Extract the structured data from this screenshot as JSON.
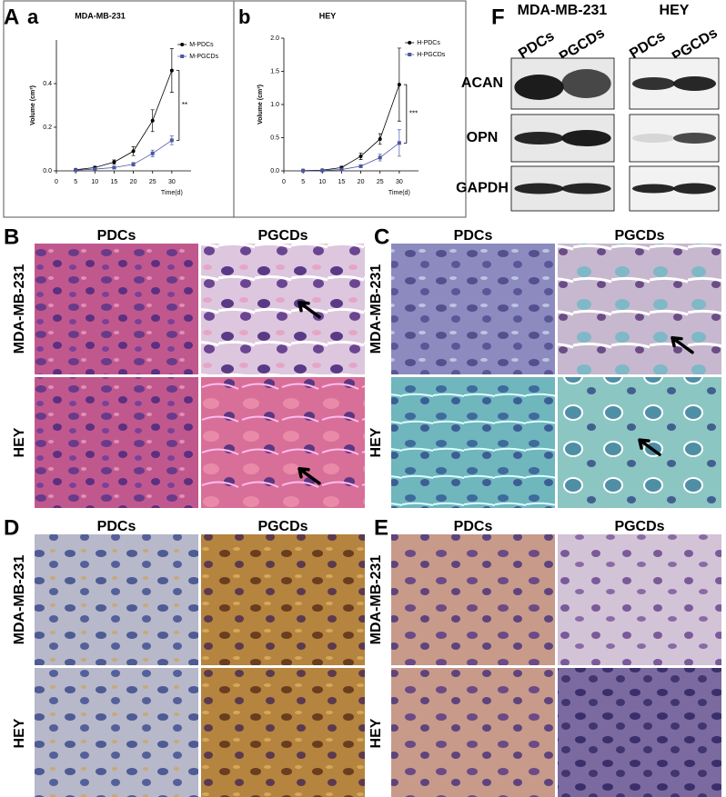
{
  "panel_labels": [
    "A",
    "a",
    "b",
    "F",
    "B",
    "C",
    "D",
    "E"
  ],
  "chart_data": [
    {
      "type": "line",
      "title": "MDA-MB-231",
      "xlabel": "Time(d)",
      "ylabel": "Volume (cm³)",
      "x": [
        5,
        10,
        15,
        20,
        25,
        30
      ],
      "series": [
        {
          "name": "M-PDCs",
          "color": "#000000",
          "marker": "circle",
          "values": [
            0.005,
            0.015,
            0.04,
            0.09,
            0.23,
            0.46
          ],
          "errors": [
            0.003,
            0.006,
            0.01,
            0.02,
            0.05,
            0.1
          ]
        },
        {
          "name": "M-PGCDs",
          "color": "#4a56a6",
          "marker": "square",
          "values": [
            0.003,
            0.008,
            0.015,
            0.03,
            0.08,
            0.14
          ],
          "errors": [
            0.002,
            0.003,
            0.005,
            0.008,
            0.015,
            0.02
          ]
        }
      ],
      "xlim": [
        0,
        35
      ],
      "xticks": [
        0,
        5,
        10,
        15,
        20,
        25,
        30
      ],
      "ylim": [
        0,
        0.6
      ],
      "yticks": [
        {
          "value": 0,
          "label": "0.0"
        },
        0.2,
        0.4
      ],
      "annotation": "**"
    },
    {
      "type": "line",
      "title": "HEY",
      "xlabel": "Time(d)",
      "ylabel": "Volume (cm³)",
      "x": [
        5,
        10,
        15,
        20,
        25,
        30
      ],
      "series": [
        {
          "name": "H-PDCs",
          "color": "#000000",
          "marker": "circle",
          "values": [
            0.005,
            0.01,
            0.05,
            0.22,
            0.48,
            1.3
          ],
          "errors": [
            0.003,
            0.005,
            0.02,
            0.05,
            0.08,
            0.55
          ]
        },
        {
          "name": "H-PGCDs",
          "color": "#4a56a6",
          "marker": "square",
          "values": [
            0.003,
            0.005,
            0.02,
            0.07,
            0.2,
            0.42
          ],
          "errors": [
            0.002,
            0.003,
            0.008,
            0.02,
            0.05,
            0.2
          ]
        }
      ],
      "xlim": [
        0,
        35
      ],
      "xticks": [
        0,
        5,
        10,
        15,
        20,
        25,
        30
      ],
      "ylim": [
        0,
        2.0
      ],
      "yticks": [
        {
          "value": 0,
          "label": "0.0"
        },
        0.5,
        {
          "value": 1,
          "label": "1.0"
        },
        1.5,
        {
          "value": 2,
          "label": "2.0"
        }
      ],
      "annotation": "***"
    }
  ],
  "western_blot": {
    "groups": [
      "MDA-MB-231",
      "HEY"
    ],
    "columns": [
      "PDCs",
      "PGCDs",
      "PDCs",
      "PGCDs"
    ],
    "rows": [
      "ACAN",
      "OPN",
      "GAPDH"
    ]
  },
  "histology": [
    {
      "columns": [
        "PDCs",
        "PGCDs"
      ],
      "rows": [
        "MDA-MB-231",
        "HEY"
      ]
    },
    {
      "columns": [
        "PDCs",
        "PGCDs"
      ],
      "rows": [
        "MDA-MB-231",
        "HEY"
      ]
    },
    {
      "columns": [
        "PDCs",
        "PGCDs"
      ],
      "rows": [
        "MDA-MB-231",
        "HEY"
      ]
    },
    {
      "columns": [
        "PDCs",
        "PGCDs"
      ],
      "rows": [
        "MDA-MB-231",
        "HEY"
      ]
    }
  ]
}
